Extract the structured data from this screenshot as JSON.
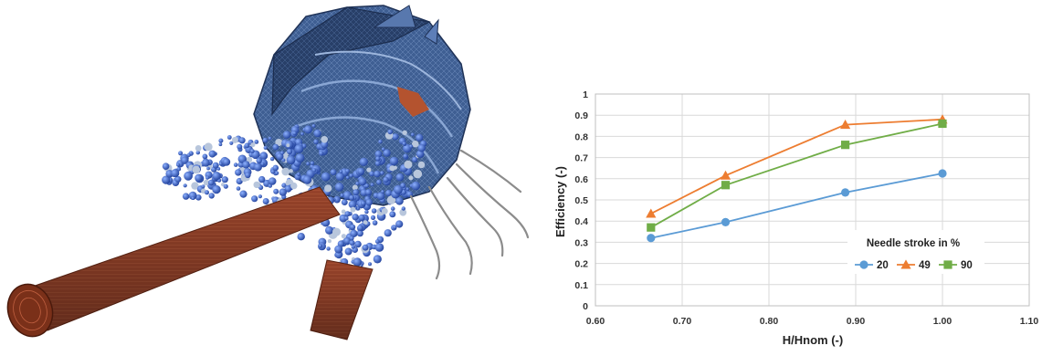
{
  "chart_data": {
    "type": "line",
    "title": "",
    "xlabel": "H/Hnom (-)",
    "ylabel": "Efficiency (-)",
    "xlim": [
      0.6,
      1.1
    ],
    "ylim": [
      0,
      1
    ],
    "xticks": [
      "0.60",
      "0.70",
      "0.80",
      "0.90",
      "1.00",
      "1.10"
    ],
    "yticks": [
      "0",
      "0.1",
      "0.2",
      "0.3",
      "0.4",
      "0.5",
      "0.6",
      "0.7",
      "0.8",
      "0.9",
      "1"
    ],
    "grid": true,
    "legend_title": "Needle stroke in %",
    "legend_position": "bottom-right",
    "x": [
      0.664,
      0.75,
      0.888,
      1.0
    ],
    "series": [
      {
        "name": "20",
        "color": "#5b9bd5",
        "marker": "circle",
        "values": [
          0.32,
          0.395,
          0.535,
          0.625
        ]
      },
      {
        "name": "49",
        "color": "#ed7d31",
        "marker": "triangle",
        "values": [
          0.435,
          0.615,
          0.855,
          0.88
        ]
      },
      {
        "name": "90",
        "color": "#70ad47",
        "marker": "square",
        "values": [
          0.37,
          0.57,
          0.76,
          0.86
        ]
      }
    ]
  },
  "colors": {
    "runner_blue": "#3d5f95",
    "runner_blue_dark": "#22375e",
    "pipe_copper": "#9e4528",
    "pipe_copper_dark": "#5d2414"
  }
}
